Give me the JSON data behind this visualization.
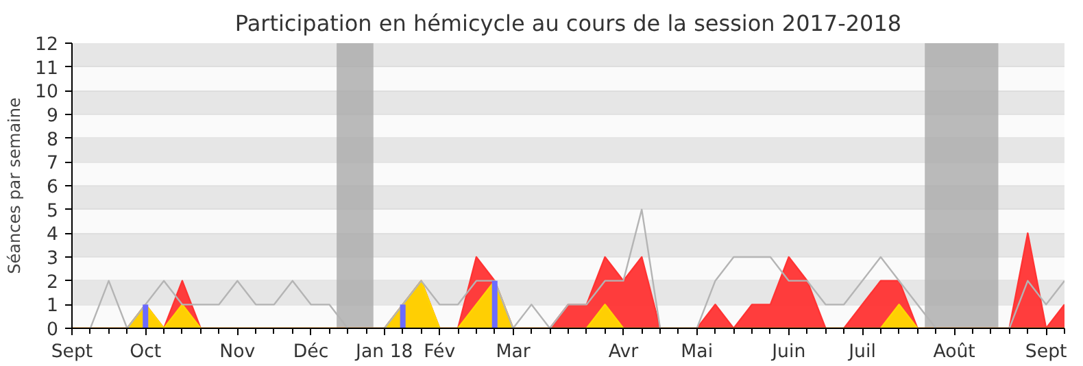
{
  "chart_data": {
    "type": "area",
    "title": "Participation en hémicycle au cours de la session 2017-2018",
    "ylabel": "Séances par semaine",
    "categories": [
      "Sept",
      null,
      null,
      null,
      "Oct",
      null,
      null,
      null,
      null,
      "Nov",
      null,
      null,
      null,
      "Déc",
      null,
      null,
      null,
      "Jan 18",
      null,
      null,
      "Fév",
      null,
      null,
      null,
      "Mar",
      null,
      null,
      null,
      null,
      null,
      "Avr",
      null,
      null,
      null,
      "Mai",
      null,
      null,
      null,
      null,
      "Juin",
      null,
      null,
      null,
      "Juil",
      null,
      null,
      null,
      null,
      "Août",
      null,
      null,
      null,
      null,
      "Sept",
      null
    ],
    "ylim": [
      0,
      12
    ],
    "yticks": [
      0,
      1,
      2,
      3,
      4,
      5,
      6,
      7,
      8,
      9,
      10,
      11,
      12
    ],
    "grid": "y",
    "series": [
      {
        "color": "#ff3333",
        "values": [
          0,
          0,
          0,
          0,
          1,
          0,
          2,
          0,
          0,
          0,
          0,
          0,
          0,
          0,
          0,
          0,
          0,
          0,
          1,
          2,
          0,
          0,
          3,
          2,
          0,
          0,
          0,
          1,
          1,
          3,
          2,
          3,
          0,
          0,
          0,
          1,
          0,
          1,
          1,
          3,
          2,
          0,
          0,
          1,
          2,
          2,
          0,
          0,
          0,
          0,
          0,
          0,
          4,
          0,
          1
        ]
      },
      {
        "type": "area",
        "color": "#ffd700",
        "values": [
          0,
          0,
          0,
          0,
          1,
          0,
          1,
          0,
          0,
          0,
          0,
          0,
          0,
          0,
          0,
          0,
          0,
          0,
          1,
          2,
          0,
          0,
          1,
          2,
          0,
          0,
          0,
          0,
          0,
          1,
          0,
          0,
          0,
          0,
          0,
          0,
          0,
          0,
          0,
          0,
          0,
          0,
          0,
          0,
          0,
          1,
          0,
          0,
          0,
          0,
          0,
          0,
          0,
          0,
          0
        ]
      },
      {
        "type": "line",
        "color": "#b4b4b4",
        "values": [
          null,
          0,
          2,
          0,
          1,
          2,
          1,
          1,
          1,
          2,
          1,
          1,
          2,
          1,
          1,
          0,
          0,
          0,
          1,
          2,
          1,
          1,
          2,
          2,
          0,
          1,
          0,
          1,
          1,
          2,
          2,
          5,
          0,
          0,
          0,
          2,
          3,
          3,
          3,
          2,
          2,
          1,
          1,
          2,
          3,
          2,
          1,
          0,
          0,
          0,
          0,
          0,
          2,
          1,
          2
        ]
      },
      {
        "type": "bar",
        "color": "#6b6bff",
        "values": [
          null,
          null,
          null,
          null,
          1,
          null,
          null,
          null,
          null,
          null,
          null,
          null,
          null,
          null,
          null,
          null,
          null,
          null,
          1,
          null,
          null,
          null,
          null,
          2,
          null,
          null,
          null,
          null,
          null,
          null,
          null,
          null,
          null,
          null,
          null,
          null,
          null,
          null,
          null,
          null,
          null,
          null,
          null,
          null,
          null,
          null,
          null,
          null,
          null,
          null,
          null,
          null,
          null,
          null,
          null
        ]
      }
    ]
  }
}
